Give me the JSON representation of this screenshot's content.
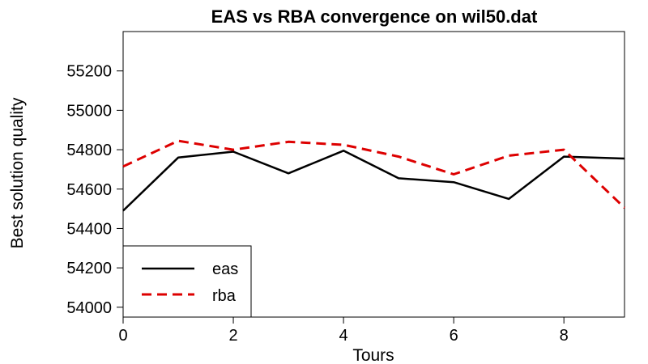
{
  "chart_data": {
    "type": "line",
    "title": "EAS vs RBA convergence on wil50.dat",
    "xlabel": "Tours",
    "ylabel": "Best solution quality",
    "xlim": [
      0,
      9.1
    ],
    "ylim": [
      53950,
      55400
    ],
    "x_ticks": [
      0,
      2,
      4,
      6,
      8
    ],
    "y_ticks": [
      54000,
      54200,
      54400,
      54600,
      54800,
      55000,
      55200
    ],
    "x": [
      0,
      1,
      2,
      3,
      4,
      5,
      6,
      7,
      8,
      9.1
    ],
    "series": [
      {
        "name": "eas",
        "color": "#000000",
        "dash": "solid",
        "values": [
          54490,
          54760,
          54790,
          54680,
          54795,
          54655,
          54635,
          54550,
          54765,
          54755
        ]
      },
      {
        "name": "rba",
        "color": "#dd0000",
        "dash": "dashed",
        "values": [
          54715,
          54845,
          54800,
          54840,
          54825,
          54765,
          54675,
          54770,
          54800,
          54505
        ]
      }
    ],
    "legend_position": "bottom-left",
    "grid": false
  }
}
